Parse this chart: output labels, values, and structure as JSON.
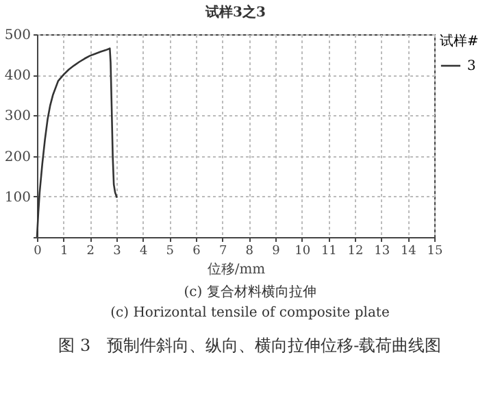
{
  "chart_data": {
    "type": "line",
    "title": "试样3之3",
    "xlabel": "位移/mm",
    "legend_title": "试样#",
    "x": [
      0,
      0.05,
      0.1,
      0.2,
      0.3,
      0.4,
      0.5,
      0.6,
      0.8,
      1.0,
      1.2,
      1.4,
      1.6,
      1.8,
      2.0,
      2.2,
      2.4,
      2.6,
      2.75,
      2.78,
      2.82,
      2.86,
      2.9,
      2.95,
      3.02
    ],
    "series": [
      {
        "name": "3",
        "color": "#333333",
        "values": [
          0,
          60,
          110,
          180,
          240,
          290,
          325,
          350,
          385,
          400,
          413,
          423,
          432,
          440,
          447,
          452,
          457,
          461,
          465,
          430,
          320,
          200,
          130,
          110,
          97
        ]
      }
    ],
    "xlim": [
      0,
      15
    ],
    "xticks": [
      0,
      1,
      2,
      3,
      4,
      5,
      6,
      7,
      8,
      9,
      10,
      11,
      12,
      13,
      14,
      15
    ],
    "ylim": [
      0,
      500
    ],
    "yticks": [
      {
        "value": 0,
        "label": null
      },
      100,
      200,
      300,
      400,
      500
    ],
    "grid": true,
    "legend": "right",
    "annotations": [
      "(c) 复合材料横向拉伸",
      "(c) Horizontal tensile of composite plate",
      "图 3　预制件斜向、纵向、横向拉伸位移-载荷曲线图"
    ]
  }
}
